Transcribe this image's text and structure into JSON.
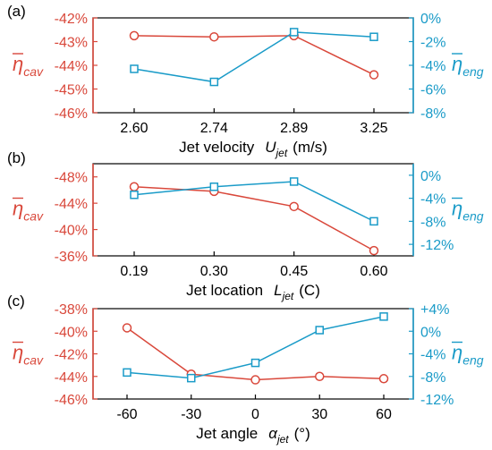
{
  "colors": {
    "cav": "#d9483b",
    "eng": "#1a9bc8",
    "frame": "#000000"
  },
  "chart_data": [
    {
      "type": "line",
      "panel_label": "(a)",
      "categories": [
        "2.60",
        "2.74",
        "2.89",
        "3.25"
      ],
      "xlabel_text": "Jet velocity",
      "xlabel_sym": "U",
      "xlabel_sub": "jet",
      "xlabel_unit": "(m/s)",
      "left_axis": {
        "label": "η",
        "label_sub": "cav",
        "ticks": [
          "-46%",
          "-45%",
          "-44%",
          "-43%",
          "-42%"
        ],
        "values": [
          -46,
          -45,
          -44,
          -43,
          -42
        ],
        "ylim": [
          -46,
          -42
        ],
        "inverted": false
      },
      "right_axis": {
        "label": "η",
        "label_sub": "eng",
        "ticks": [
          "0%",
          "-2%",
          "-4%",
          "-6%",
          "-8%"
        ],
        "values": [
          0,
          -2,
          -4,
          -6,
          -8
        ],
        "ylim": [
          -8,
          0
        ],
        "inverted": false
      },
      "series": [
        {
          "axis": "left",
          "marker": "circle",
          "values": [
            -42.75,
            -42.8,
            -42.75,
            -44.4
          ]
        },
        {
          "axis": "right",
          "marker": "square",
          "values": [
            -4.3,
            -5.4,
            -1.2,
            -1.6
          ]
        }
      ]
    },
    {
      "type": "line",
      "panel_label": "(b)",
      "categories": [
        "0.19",
        "0.30",
        "0.45",
        "0.60"
      ],
      "xlabel_text": "Jet location",
      "xlabel_sym": "L",
      "xlabel_sub": "jet",
      "xlabel_unit": "(C)",
      "left_axis": {
        "label": "η",
        "label_sub": "cav",
        "ticks": [
          "-48%",
          "-44%",
          "-40%",
          "-36%"
        ],
        "values": [
          -48,
          -44,
          -40,
          -36
        ],
        "ylim": [
          -50,
          -36
        ],
        "inverted": true
      },
      "right_axis": {
        "label": "η",
        "label_sub": "eng",
        "ticks": [
          "0%",
          "-4%",
          "-8%",
          "-12%"
        ],
        "values": [
          0,
          -4,
          -8,
          -12
        ],
        "ylim": [
          -14,
          2
        ],
        "inverted": false
      },
      "series": [
        {
          "axis": "left",
          "marker": "circle",
          "values": [
            -46.5,
            -45.8,
            -43.5,
            -36.8
          ]
        },
        {
          "axis": "right",
          "marker": "square",
          "values": [
            -3.4,
            -2.0,
            -1.1,
            -8.0
          ]
        }
      ]
    },
    {
      "type": "line",
      "panel_label": "(c)",
      "categories": [
        "-60",
        "-30",
        "0",
        "30",
        "60"
      ],
      "xlabel_text": "Jet angle",
      "xlabel_sym": "α",
      "xlabel_sub": "jet",
      "xlabel_unit": "(°)",
      "left_axis": {
        "label": "η",
        "label_sub": "cav",
        "ticks": [
          "-46%",
          "-44%",
          "-42%",
          "-40%",
          "-38%"
        ],
        "values": [
          -46,
          -44,
          -42,
          -40,
          -38
        ],
        "ylim": [
          -46,
          -38
        ],
        "inverted": false
      },
      "right_axis": {
        "label": "η",
        "label_sub": "eng",
        "ticks": [
          "+4%",
          "0%",
          "-4%",
          "-8%",
          "-12%"
        ],
        "values": [
          4,
          0,
          -4,
          -8,
          -12
        ],
        "ylim": [
          -12,
          4
        ],
        "inverted": false
      },
      "series": [
        {
          "axis": "left",
          "marker": "circle",
          "values": [
            -39.7,
            -43.8,
            -44.3,
            -44.0,
            -44.2
          ]
        },
        {
          "axis": "right",
          "marker": "square",
          "values": [
            -7.3,
            -8.3,
            -5.6,
            0.2,
            2.6
          ]
        }
      ]
    }
  ]
}
